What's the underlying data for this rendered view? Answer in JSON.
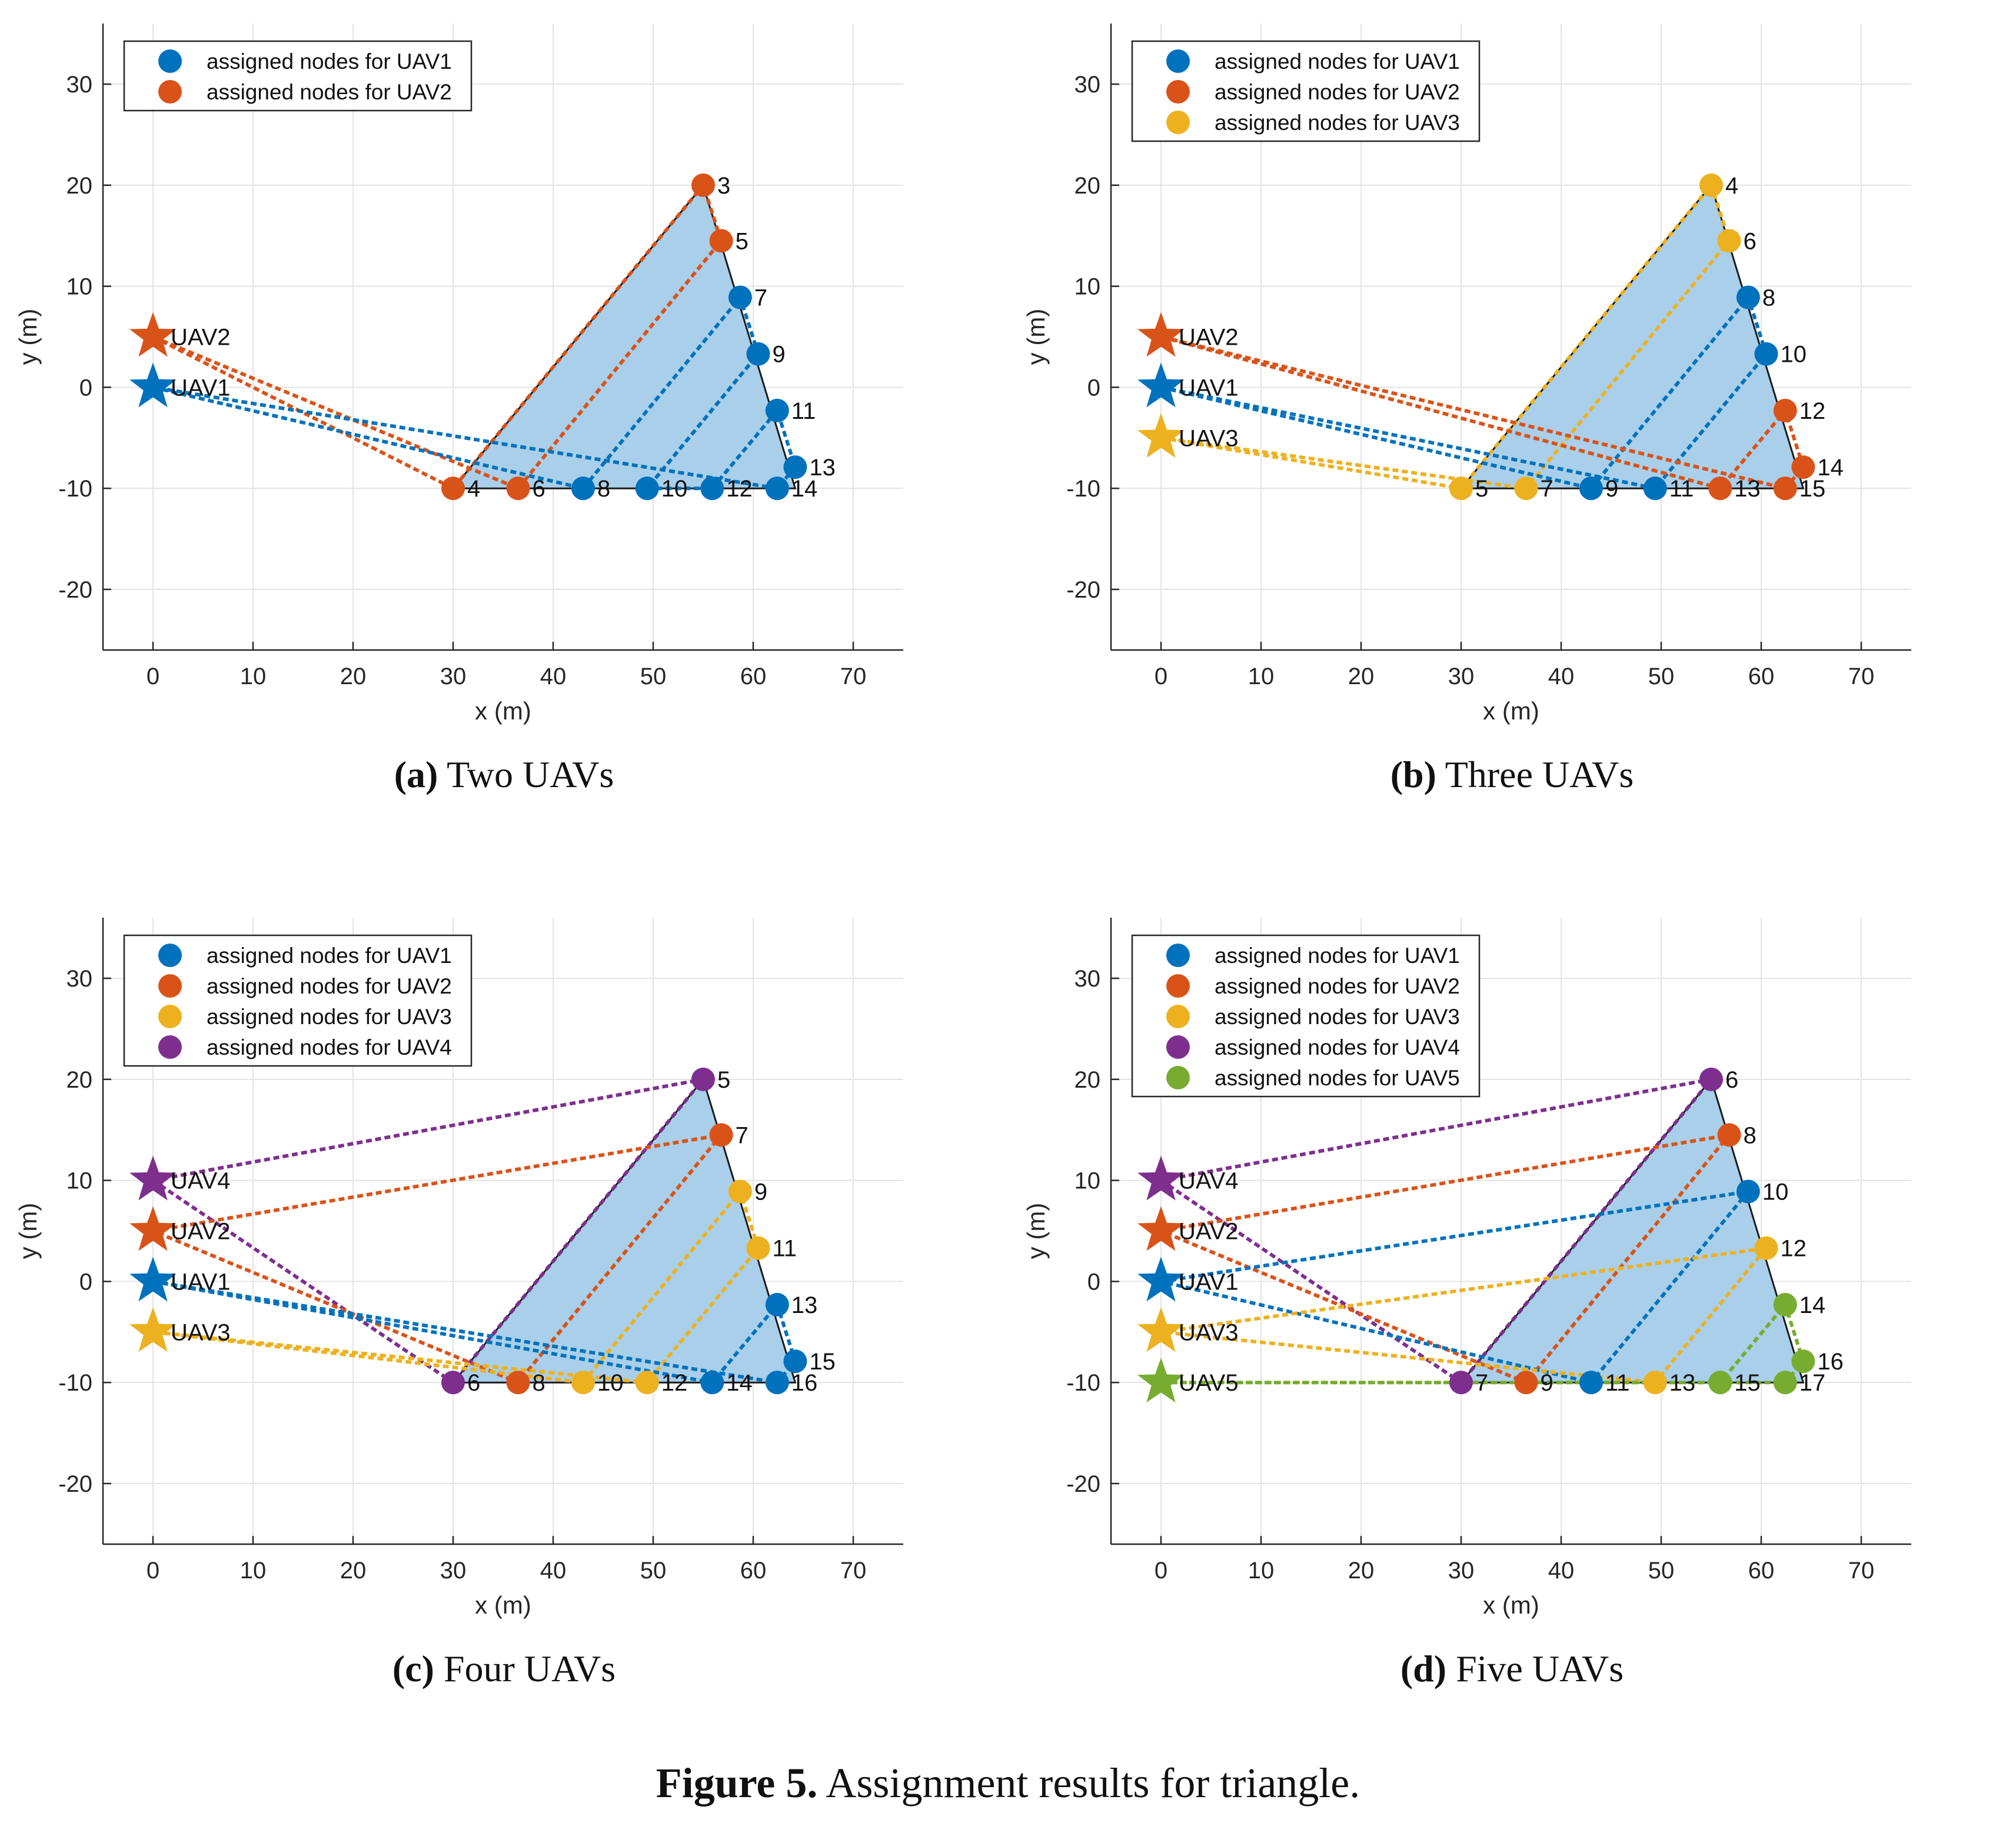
{
  "figure_label": "Figure 5.",
  "figure_title": "Assignment results for triangle.",
  "colors": {
    "UAV1": "#0072BD",
    "UAV2": "#D95319",
    "UAV3": "#EDB120",
    "UAV4": "#7E2F8E",
    "UAV5": "#77AC30",
    "triangle_fill": "#A9CFEA",
    "grid": "#E3E3E3"
  },
  "chart_data": [
    {
      "type": "scatter",
      "panel_label": "(a)",
      "title": "Two UAVs",
      "xlabel": "x (m)",
      "ylabel": "y (m)",
      "xlim": [
        -5,
        75
      ],
      "ylim": [
        -26,
        36
      ],
      "xticks": [
        0,
        10,
        20,
        30,
        40,
        50,
        60,
        70
      ],
      "yticks": [
        30,
        20,
        10,
        0,
        -10,
        -20
      ],
      "grid": true,
      "legend_position": "top-left",
      "legend": [
        "assigned nodes for UAV1",
        "assigned nodes for UAV2"
      ],
      "triangle": [
        [
          30,
          -10
        ],
        [
          55,
          20
        ],
        [
          64.2,
          -10
        ]
      ],
      "uavs": [
        {
          "name": "UAV1",
          "x": 0,
          "y": 0
        },
        {
          "name": "UAV2",
          "x": 0,
          "y": 5
        }
      ],
      "nodes": [
        {
          "id": "3",
          "x": 55,
          "y": 20,
          "uav": "UAV2"
        },
        {
          "id": "4",
          "x": 30,
          "y": -10,
          "uav": "UAV2"
        },
        {
          "id": "5",
          "x": 56.8,
          "y": 14.5,
          "uav": "UAV2"
        },
        {
          "id": "6",
          "x": 36.5,
          "y": -10,
          "uav": "UAV2"
        },
        {
          "id": "7",
          "x": 58.7,
          "y": 8.9,
          "uav": "UAV1"
        },
        {
          "id": "8",
          "x": 43,
          "y": -10,
          "uav": "UAV1"
        },
        {
          "id": "9",
          "x": 60.5,
          "y": 3.3,
          "uav": "UAV1"
        },
        {
          "id": "10",
          "x": 49.4,
          "y": -10,
          "uav": "UAV1"
        },
        {
          "id": "11",
          "x": 62.4,
          "y": -2.3,
          "uav": "UAV1"
        },
        {
          "id": "12",
          "x": 55.9,
          "y": -10,
          "uav": "UAV1"
        },
        {
          "id": "13",
          "x": 64.2,
          "y": -7.9,
          "uav": "UAV1"
        },
        {
          "id": "14",
          "x": 62.4,
          "y": -10,
          "uav": "UAV1"
        }
      ],
      "routes": [
        {
          "uav": "UAV2",
          "path": [
            "UAV2",
            "4",
            "3",
            "5",
            "6",
            "UAV2"
          ]
        },
        {
          "uav": "UAV1",
          "path": [
            "UAV1",
            "8",
            "7",
            "9",
            "10",
            "12",
            "11",
            "13",
            "14",
            "UAV1"
          ]
        }
      ]
    },
    {
      "type": "scatter",
      "panel_label": "(b)",
      "title": "Three UAVs",
      "xlabel": "x (m)",
      "ylabel": "y (m)",
      "xlim": [
        -5,
        75
      ],
      "ylim": [
        -26,
        36
      ],
      "xticks": [
        0,
        10,
        20,
        30,
        40,
        50,
        60,
        70
      ],
      "yticks": [
        30,
        20,
        10,
        0,
        -10,
        -20
      ],
      "grid": true,
      "legend_position": "top-left",
      "legend": [
        "assigned nodes for UAV1",
        "assigned nodes for UAV2",
        "assigned nodes for UAV3"
      ],
      "triangle": [
        [
          30,
          -10
        ],
        [
          55,
          20
        ],
        [
          64.2,
          -10
        ]
      ],
      "uavs": [
        {
          "name": "UAV1",
          "x": 0,
          "y": 0
        },
        {
          "name": "UAV2",
          "x": 0,
          "y": 5
        },
        {
          "name": "UAV3",
          "x": 0,
          "y": -5
        }
      ],
      "nodes": [
        {
          "id": "4",
          "x": 55,
          "y": 20,
          "uav": "UAV3"
        },
        {
          "id": "5",
          "x": 30,
          "y": -10,
          "uav": "UAV3"
        },
        {
          "id": "6",
          "x": 56.8,
          "y": 14.5,
          "uav": "UAV3"
        },
        {
          "id": "7",
          "x": 36.5,
          "y": -10,
          "uav": "UAV3"
        },
        {
          "id": "8",
          "x": 58.7,
          "y": 8.9,
          "uav": "UAV1"
        },
        {
          "id": "9",
          "x": 43,
          "y": -10,
          "uav": "UAV1"
        },
        {
          "id": "10",
          "x": 60.5,
          "y": 3.3,
          "uav": "UAV1"
        },
        {
          "id": "11",
          "x": 49.4,
          "y": -10,
          "uav": "UAV1"
        },
        {
          "id": "12",
          "x": 62.4,
          "y": -2.3,
          "uav": "UAV2"
        },
        {
          "id": "13",
          "x": 55.9,
          "y": -10,
          "uav": "UAV2"
        },
        {
          "id": "14",
          "x": 64.2,
          "y": -7.9,
          "uav": "UAV2"
        },
        {
          "id": "15",
          "x": 62.4,
          "y": -10,
          "uav": "UAV2"
        }
      ],
      "routes": [
        {
          "uav": "UAV3",
          "path": [
            "UAV3",
            "5",
            "4",
            "6",
            "7",
            "UAV3"
          ]
        },
        {
          "uav": "UAV1",
          "path": [
            "UAV1",
            "9",
            "8",
            "10",
            "11",
            "UAV1"
          ]
        },
        {
          "uav": "UAV2",
          "path": [
            "UAV2",
            "13",
            "12",
            "14",
            "15",
            "UAV2"
          ]
        }
      ]
    },
    {
      "type": "scatter",
      "panel_label": "(c)",
      "title": "Four UAVs",
      "xlabel": "x (m)",
      "ylabel": "y (m)",
      "xlim": [
        -5,
        75
      ],
      "ylim": [
        -26,
        36
      ],
      "xticks": [
        0,
        10,
        20,
        30,
        40,
        50,
        60,
        70
      ],
      "yticks": [
        30,
        20,
        10,
        0,
        -10,
        -20
      ],
      "grid": true,
      "legend_position": "top-left",
      "legend": [
        "assigned nodes for UAV1",
        "assigned nodes for UAV2",
        "assigned nodes for UAV3",
        "assigned nodes for UAV4"
      ],
      "triangle": [
        [
          30,
          -10
        ],
        [
          55,
          20
        ],
        [
          64.2,
          -10
        ]
      ],
      "uavs": [
        {
          "name": "UAV1",
          "x": 0,
          "y": 0
        },
        {
          "name": "UAV2",
          "x": 0,
          "y": 5
        },
        {
          "name": "UAV3",
          "x": 0,
          "y": -5
        },
        {
          "name": "UAV4",
          "x": 0,
          "y": 10
        }
      ],
      "nodes": [
        {
          "id": "5",
          "x": 55,
          "y": 20,
          "uav": "UAV4"
        },
        {
          "id": "6",
          "x": 30,
          "y": -10,
          "uav": "UAV4"
        },
        {
          "id": "7",
          "x": 56.8,
          "y": 14.5,
          "uav": "UAV2"
        },
        {
          "id": "8",
          "x": 36.5,
          "y": -10,
          "uav": "UAV2"
        },
        {
          "id": "9",
          "x": 58.7,
          "y": 8.9,
          "uav": "UAV3"
        },
        {
          "id": "10",
          "x": 43,
          "y": -10,
          "uav": "UAV3"
        },
        {
          "id": "11",
          "x": 60.5,
          "y": 3.3,
          "uav": "UAV3"
        },
        {
          "id": "12",
          "x": 49.4,
          "y": -10,
          "uav": "UAV3"
        },
        {
          "id": "13",
          "x": 62.4,
          "y": -2.3,
          "uav": "UAV1"
        },
        {
          "id": "14",
          "x": 55.9,
          "y": -10,
          "uav": "UAV1"
        },
        {
          "id": "15",
          "x": 64.2,
          "y": -7.9,
          "uav": "UAV1"
        },
        {
          "id": "16",
          "x": 62.4,
          "y": -10,
          "uav": "UAV1"
        }
      ],
      "routes": [
        {
          "uav": "UAV4",
          "path": [
            "UAV4",
            "5",
            "6",
            "UAV4"
          ]
        },
        {
          "uav": "UAV2",
          "path": [
            "UAV2",
            "7",
            "8",
            "UAV2"
          ]
        },
        {
          "uav": "UAV3",
          "path": [
            "UAV3",
            "10",
            "9",
            "11",
            "12",
            "UAV3"
          ]
        },
        {
          "uav": "UAV1",
          "path": [
            "UAV1",
            "14",
            "13",
            "15",
            "16",
            "UAV1"
          ]
        }
      ]
    },
    {
      "type": "scatter",
      "panel_label": "(d)",
      "title": "Five UAVs",
      "xlabel": "x (m)",
      "ylabel": "y (m)",
      "xlim": [
        -5,
        75
      ],
      "ylim": [
        -26,
        36
      ],
      "xticks": [
        0,
        10,
        20,
        30,
        40,
        50,
        60,
        70
      ],
      "yticks": [
        30,
        20,
        10,
        0,
        -10,
        -20
      ],
      "grid": true,
      "legend_position": "top-left",
      "legend": [
        "assigned nodes for UAV1",
        "assigned nodes for UAV2",
        "assigned nodes for UAV3",
        "assigned nodes for UAV4",
        "assigned nodes for UAV5"
      ],
      "triangle": [
        [
          30,
          -10
        ],
        [
          55,
          20
        ],
        [
          64.2,
          -10
        ]
      ],
      "uavs": [
        {
          "name": "UAV1",
          "x": 0,
          "y": 0
        },
        {
          "name": "UAV2",
          "x": 0,
          "y": 5
        },
        {
          "name": "UAV3",
          "x": 0,
          "y": -5
        },
        {
          "name": "UAV4",
          "x": 0,
          "y": 10
        },
        {
          "name": "UAV5",
          "x": 0,
          "y": -10
        }
      ],
      "nodes": [
        {
          "id": "6",
          "x": 55,
          "y": 20,
          "uav": "UAV4"
        },
        {
          "id": "7",
          "x": 30,
          "y": -10,
          "uav": "UAV4"
        },
        {
          "id": "8",
          "x": 56.8,
          "y": 14.5,
          "uav": "UAV2"
        },
        {
          "id": "9",
          "x": 36.5,
          "y": -10,
          "uav": "UAV2"
        },
        {
          "id": "10",
          "x": 58.7,
          "y": 8.9,
          "uav": "UAV1"
        },
        {
          "id": "11",
          "x": 43,
          "y": -10,
          "uav": "UAV1"
        },
        {
          "id": "12",
          "x": 60.5,
          "y": 3.3,
          "uav": "UAV3"
        },
        {
          "id": "13",
          "x": 49.4,
          "y": -10,
          "uav": "UAV3"
        },
        {
          "id": "14",
          "x": 62.4,
          "y": -2.3,
          "uav": "UAV5"
        },
        {
          "id": "15",
          "x": 55.9,
          "y": -10,
          "uav": "UAV5"
        },
        {
          "id": "16",
          "x": 64.2,
          "y": -7.9,
          "uav": "UAV5"
        },
        {
          "id": "17",
          "x": 62.4,
          "y": -10,
          "uav": "UAV5"
        }
      ],
      "routes": [
        {
          "uav": "UAV4",
          "path": [
            "UAV4",
            "6",
            "7",
            "UAV4"
          ]
        },
        {
          "uav": "UAV2",
          "path": [
            "UAV2",
            "8",
            "9",
            "UAV2"
          ]
        },
        {
          "uav": "UAV1",
          "path": [
            "UAV1",
            "10",
            "11",
            "UAV1"
          ]
        },
        {
          "uav": "UAV3",
          "path": [
            "UAV3",
            "12",
            "13",
            "UAV3"
          ]
        },
        {
          "uav": "UAV5",
          "path": [
            "UAV5",
            "15",
            "14",
            "16",
            "17",
            "UAV5"
          ]
        }
      ]
    }
  ]
}
